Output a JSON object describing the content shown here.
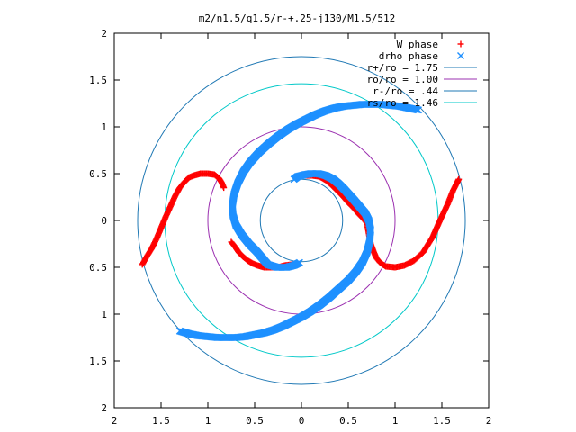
{
  "chart_data": {
    "type": "scatter",
    "title": "m2/n1.5/q1.5/r-+.25-j130/M1.5/512",
    "xlabel": "",
    "ylabel": "",
    "xlim": [
      -2,
      2
    ],
    "ylim": [
      -2,
      2
    ],
    "x_ticks": [
      -2,
      -1.5,
      -1,
      -0.5,
      0,
      0.5,
      1,
      1.5,
      2
    ],
    "y_ticks": [
      -2,
      -1.5,
      -1,
      -0.5,
      0,
      0.5,
      1,
      1.5,
      2
    ],
    "x_tick_labels": [
      "2",
      "1.5",
      "1",
      "0.5",
      "0",
      "0.5",
      "1",
      "1.5",
      "2"
    ],
    "y_tick_labels": [
      "2",
      "1.5",
      "1",
      "0.5",
      "0",
      "0.5",
      "1",
      "1.5",
      "2"
    ],
    "grid": false,
    "legend_position": "top-right",
    "point_series": [
      {
        "name": "W phase",
        "marker": "plus",
        "color": "#ff0000",
        "points": [
          [
            -1.7,
            -0.47
          ],
          [
            -1.65,
            -0.38
          ],
          [
            -1.6,
            -0.3
          ],
          [
            -1.55,
            -0.2
          ],
          [
            -1.5,
            -0.08
          ],
          [
            -1.45,
            0.04
          ],
          [
            -1.4,
            0.15
          ],
          [
            -1.35,
            0.26
          ],
          [
            -1.3,
            0.35
          ],
          [
            -1.25,
            0.41
          ],
          [
            -1.2,
            0.46
          ],
          [
            -1.15,
            0.48
          ],
          [
            -1.08,
            0.5
          ],
          [
            -1.0,
            0.5
          ],
          [
            -0.93,
            0.49
          ],
          [
            -0.88,
            0.45
          ],
          [
            -0.85,
            0.4
          ],
          [
            -0.83,
            0.35
          ],
          [
            -0.75,
            -0.23
          ],
          [
            -0.71,
            -0.28
          ],
          [
            -0.67,
            -0.34
          ],
          [
            -0.62,
            -0.39
          ],
          [
            -0.57,
            -0.43
          ],
          [
            -0.52,
            -0.46
          ],
          [
            -0.47,
            -0.48
          ],
          [
            -0.4,
            -0.5
          ],
          [
            -0.33,
            -0.5
          ],
          [
            -0.25,
            -0.5
          ],
          [
            -0.18,
            -0.48
          ],
          [
            -0.1,
            -0.47
          ],
          [
            -0.06,
            -0.46
          ],
          [
            0.05,
            0.48
          ],
          [
            0.12,
            0.48
          ],
          [
            0.19,
            0.47
          ],
          [
            0.26,
            0.43
          ],
          [
            0.32,
            0.38
          ],
          [
            0.38,
            0.32
          ],
          [
            0.44,
            0.26
          ],
          [
            0.5,
            0.19
          ],
          [
            0.56,
            0.13
          ],
          [
            0.61,
            0.07
          ],
          [
            0.66,
            0.02
          ],
          [
            0.7,
            -0.03
          ],
          [
            0.74,
            -0.25
          ],
          [
            0.77,
            -0.33
          ],
          [
            0.8,
            -0.4
          ],
          [
            0.84,
            -0.45
          ],
          [
            0.9,
            -0.49
          ],
          [
            1.0,
            -0.5
          ],
          [
            1.1,
            -0.48
          ],
          [
            1.2,
            -0.43
          ],
          [
            1.3,
            -0.34
          ],
          [
            1.4,
            -0.18
          ],
          [
            1.48,
            0.0
          ],
          [
            1.56,
            0.17
          ],
          [
            1.62,
            0.32
          ],
          [
            1.66,
            0.4
          ],
          [
            1.68,
            0.44
          ]
        ]
      },
      {
        "name": "drho phase",
        "marker": "cross",
        "color": "#1e90ff",
        "points": [
          [
            1.25,
            1.18
          ],
          [
            1.15,
            1.2
          ],
          [
            1.05,
            1.22
          ],
          [
            0.95,
            1.23
          ],
          [
            0.85,
            1.24
          ],
          [
            0.75,
            1.24
          ],
          [
            0.65,
            1.24
          ],
          [
            0.55,
            1.23
          ],
          [
            0.45,
            1.22
          ],
          [
            0.35,
            1.2
          ],
          [
            0.25,
            1.17
          ],
          [
            0.15,
            1.13
          ],
          [
            0.05,
            1.08
          ],
          [
            -0.05,
            1.03
          ],
          [
            -0.15,
            0.97
          ],
          [
            -0.25,
            0.9
          ],
          [
            -0.35,
            0.82
          ],
          [
            -0.45,
            0.73
          ],
          [
            -0.55,
            0.62
          ],
          [
            -0.62,
            0.52
          ],
          [
            -0.68,
            0.4
          ],
          [
            -0.72,
            0.28
          ],
          [
            -0.74,
            0.15
          ],
          [
            -0.73,
            0.05
          ],
          [
            -0.7,
            -0.05
          ],
          [
            -0.64,
            -0.15
          ],
          [
            -0.56,
            -0.25
          ],
          [
            -0.48,
            -0.33
          ],
          [
            -0.36,
            -0.47
          ],
          [
            -0.26,
            -0.5
          ],
          [
            -0.16,
            -0.5
          ],
          [
            -0.08,
            -0.48
          ],
          [
            -0.02,
            -0.45
          ],
          [
            -1.3,
            -1.18
          ],
          [
            -1.2,
            -1.21
          ],
          [
            -1.1,
            -1.23
          ],
          [
            -1.0,
            -1.24
          ],
          [
            -0.9,
            -1.25
          ],
          [
            -0.8,
            -1.25
          ],
          [
            -0.7,
            -1.25
          ],
          [
            -0.6,
            -1.24
          ],
          [
            -0.5,
            -1.22
          ],
          [
            -0.4,
            -1.2
          ],
          [
            -0.3,
            -1.17
          ],
          [
            -0.2,
            -1.13
          ],
          [
            -0.1,
            -1.08
          ],
          [
            0.0,
            -1.03
          ],
          [
            0.1,
            -0.97
          ],
          [
            0.2,
            -0.9
          ],
          [
            0.3,
            -0.82
          ],
          [
            0.4,
            -0.73
          ],
          [
            0.5,
            -0.64
          ],
          [
            0.58,
            -0.55
          ],
          [
            0.65,
            -0.45
          ],
          [
            0.7,
            -0.34
          ],
          [
            0.73,
            -0.22
          ],
          [
            0.74,
            -0.1
          ],
          [
            0.72,
            0.0
          ],
          [
            0.68,
            0.08
          ],
          [
            0.62,
            0.15
          ],
          [
            0.56,
            0.22
          ],
          [
            0.46,
            0.33
          ],
          [
            0.4,
            0.39
          ],
          [
            0.34,
            0.44
          ],
          [
            0.26,
            0.48
          ],
          [
            0.18,
            0.5
          ],
          [
            0.1,
            0.5
          ],
          [
            0.04,
            0.49
          ],
          [
            -0.04,
            0.47
          ],
          [
            -0.08,
            0.44
          ]
        ]
      }
    ],
    "circles": [
      {
        "name": "r+/ro = 1.75",
        "radius": 1.75,
        "color": "#1f78b4"
      },
      {
        "name": "ro/ro = 1.00",
        "radius": 1.0,
        "color": "#9b30b0"
      },
      {
        "name": "r-/ro = .44",
        "radius": 0.44,
        "color": "#1f78b4"
      },
      {
        "name": "rs/ro = 1.46",
        "radius": 1.46,
        "color": "#00c8c8"
      }
    ]
  }
}
